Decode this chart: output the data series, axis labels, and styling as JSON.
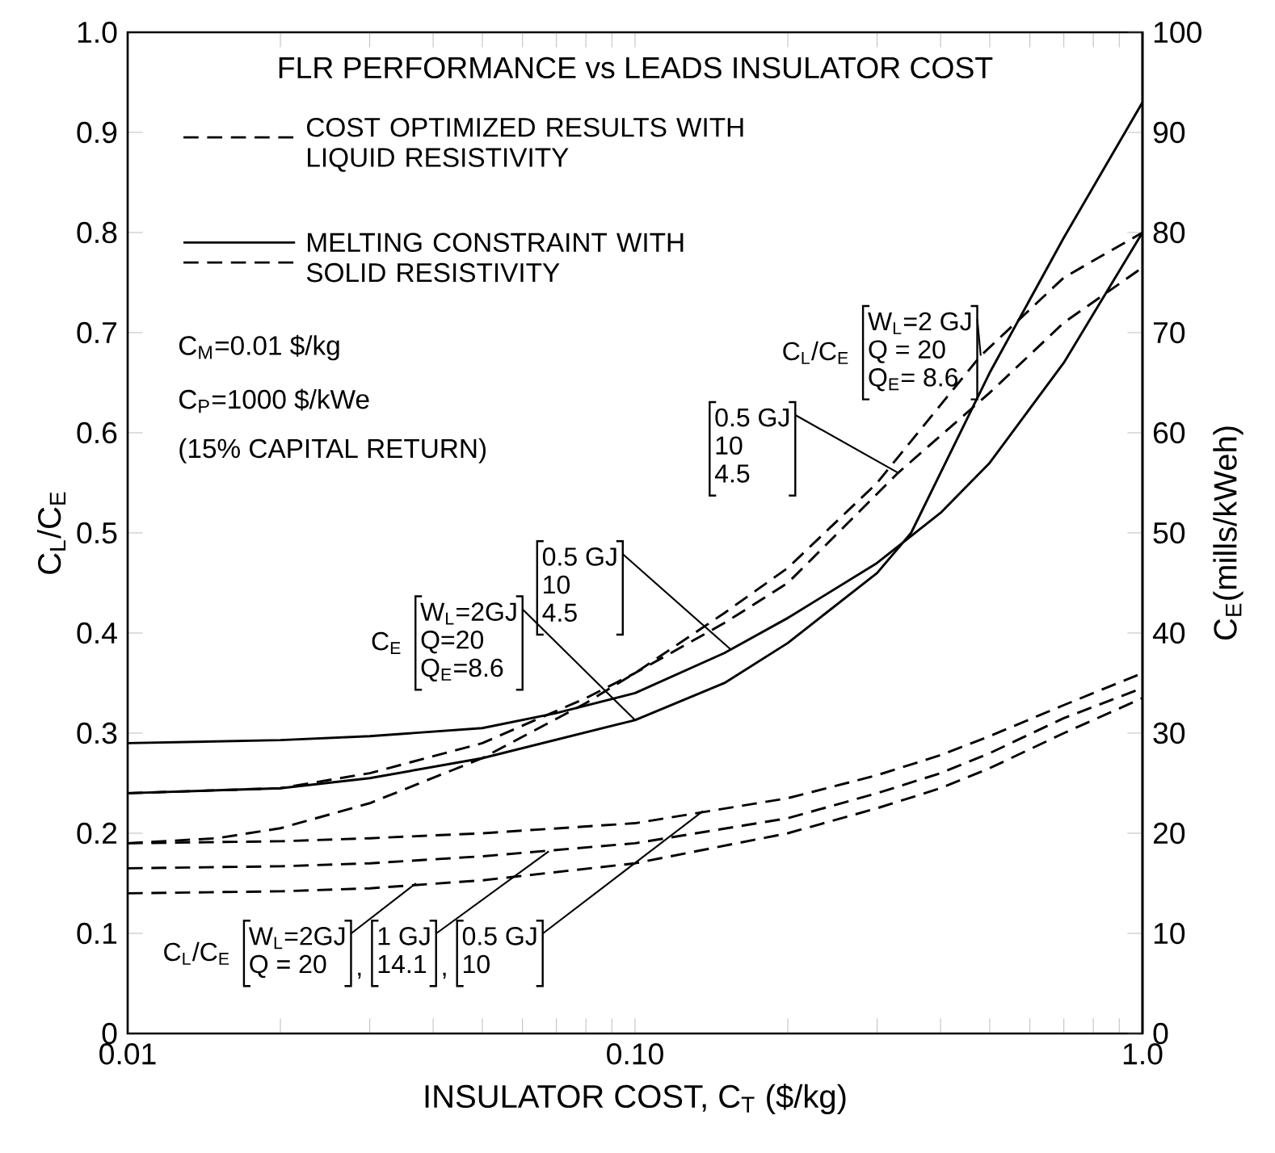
{
  "chart_data": {
    "type": "line",
    "title": "FLR PERFORMANCE vs LEADS INSULATOR COST",
    "xlabel": "INSULATOR COST, C$_{T}$ ($/kg)",
    "ylabel": "C$_{L}$/C$_{E}$",
    "y2label": "C$_{E}$(mills/kWeh)",
    "log": "x",
    "xlim": [
      0.01,
      1.0
    ],
    "ylim": [
      0,
      1.0
    ],
    "y2lim": [
      0,
      100
    ],
    "xticks": [
      0.01,
      {
        "value": 0.02,
        "label": null
      },
      {
        "value": 0.03,
        "label": null
      },
      {
        "value": 0.04,
        "label": null
      },
      {
        "value": 0.05,
        "label": null
      },
      {
        "value": 0.06,
        "label": null
      },
      {
        "value": 0.07,
        "label": null
      },
      {
        "value": 0.08,
        "label": null
      },
      {
        "value": 0.09,
        "label": null
      },
      {
        "value": 0.1,
        "label": "0.10"
      },
      {
        "value": 0.2,
        "label": null
      },
      {
        "value": 0.3,
        "label": null
      },
      {
        "value": 0.4,
        "label": null
      },
      {
        "value": 0.5,
        "label": null
      },
      {
        "value": 0.6,
        "label": null
      },
      {
        "value": 0.7,
        "label": null
      },
      {
        "value": 0.8,
        "label": null
      },
      {
        "value": 0.9,
        "label": null
      },
      {
        "value": 1.0,
        "label": "1.0"
      }
    ],
    "yticks": [
      0,
      0.1,
      0.2,
      0.3,
      0.4,
      0.5,
      0.6,
      0.7,
      0.8,
      0.9,
      {
        "value": 1.0,
        "label": "1.0"
      }
    ],
    "y2ticks": [
      0,
      10,
      20,
      30,
      40,
      50,
      60,
      70,
      80,
      90,
      100
    ],
    "grid": false,
    "marker": "none",
    "series": [
      {
        "color": "#000000",
        "line_style": "dashed",
        "x": [
          0.01,
          0.02,
          0.03,
          0.05,
          0.1,
          0.2,
          0.3,
          0.4,
          0.5,
          0.7,
          1.0
        ],
        "values": [
          0.14,
          0.142,
          0.145,
          0.153,
          0.17,
          0.2,
          0.225,
          0.245,
          0.265,
          0.3,
          0.335
        ]
      },
      {
        "color": "#000000",
        "line_style": "dashed",
        "x": [
          0.01,
          0.02,
          0.03,
          0.05,
          0.1,
          0.2,
          0.3,
          0.4,
          0.5,
          0.7,
          1.0
        ],
        "values": [
          0.165,
          0.167,
          0.17,
          0.177,
          0.19,
          0.215,
          0.24,
          0.26,
          0.28,
          0.315,
          0.345
        ]
      },
      {
        "color": "#000000",
        "line_style": "dashed",
        "x": [
          0.01,
          0.02,
          0.03,
          0.05,
          0.1,
          0.2,
          0.3,
          0.4,
          0.5,
          0.7,
          1.0
        ],
        "values": [
          0.19,
          0.192,
          0.195,
          0.2,
          0.21,
          0.235,
          0.258,
          0.278,
          0.297,
          0.328,
          0.36
        ]
      },
      {
        "color": "#000000",
        "line_style": "dashed",
        "x": [
          0.01,
          0.015,
          0.02,
          0.03,
          0.05,
          0.08,
          0.1,
          0.15,
          0.2,
          0.3,
          0.48,
          0.7,
          1.0
        ],
        "values": [
          0.19,
          0.195,
          0.205,
          0.23,
          0.275,
          0.33,
          0.36,
          0.42,
          0.465,
          0.55,
          0.677,
          0.755,
          0.8
        ]
      },
      {
        "color": "#000000",
        "line_style": "dashed",
        "x": [
          0.01,
          0.02,
          0.03,
          0.05,
          0.08,
          0.1,
          0.15,
          0.2,
          0.33,
          0.5,
          0.7,
          1.0
        ],
        "values": [
          0.24,
          0.245,
          0.26,
          0.29,
          0.335,
          0.36,
          0.41,
          0.45,
          0.56,
          0.64,
          0.71,
          0.765
        ]
      },
      {
        "color": "#000000",
        "line_style": "solid",
        "axis": "y2",
        "x": [
          0.01,
          0.02,
          0.03,
          0.05,
          0.1,
          0.15,
          0.2,
          0.3,
          0.35,
          0.4,
          0.5,
          0.7,
          1.0
        ],
        "values": [
          24,
          24.5,
          25.5,
          27.5,
          31.3,
          35,
          39,
          46,
          50,
          56,
          66,
          79.5,
          93
        ]
      },
      {
        "color": "#000000",
        "line_style": "solid",
        "axis": "y2",
        "x": [
          0.01,
          0.02,
          0.03,
          0.05,
          0.07,
          0.1,
          0.15,
          0.2,
          0.3,
          0.4,
          0.5,
          0.7,
          1.0
        ],
        "values": [
          29,
          29.3,
          29.7,
          30.5,
          32,
          34,
          38,
          41.5,
          47,
          52,
          57,
          67,
          80
        ]
      }
    ],
    "annotations": [
      "COST OPTIMIZED RESULTS WITH LIQUID RESISTIVITY",
      "MELTING CONSTRAINT WITH SOLID RESISTIVITY",
      "C$_{M}$=0.01 $/kg",
      "C$_{P}$=1000 $/kWe",
      "(15% CAPITAL RETURN)",
      "C$_{L}$/C$_{E}$",
      {
        "text": "W$_{L}$=2 GJ",
        "x": 0.48,
        "y": 0.677
      },
      "Q = 20",
      "Q$_{E}$= 8.6",
      {
        "text": "0.5 GJ",
        "x": 0.33,
        "y": 0.56
      },
      "10",
      "4.5",
      "C$_{E}$",
      {
        "text": "W$_{L}$=2GJ",
        "x": 0.1,
        "y": 0.313
      },
      "Q=20",
      "Q$_{E}$=8.6",
      {
        "text": "0.5 GJ",
        "x": 0.154,
        "y": 0.384
      },
      "10",
      "4.5",
      "C$_{L}$/C$_{E}$",
      {
        "text": "W$_{L}$=2GJ",
        "x": 0.037,
        "y": 0.15
      },
      "Q = 20",
      ",",
      {
        "text": "1 GJ",
        "x": 0.0676,
        "y": 0.182
      },
      "14.1",
      ",",
      {
        "text": "0.5 GJ",
        "x": 0.136,
        "y": 0.222
      },
      "10"
    ]
  }
}
